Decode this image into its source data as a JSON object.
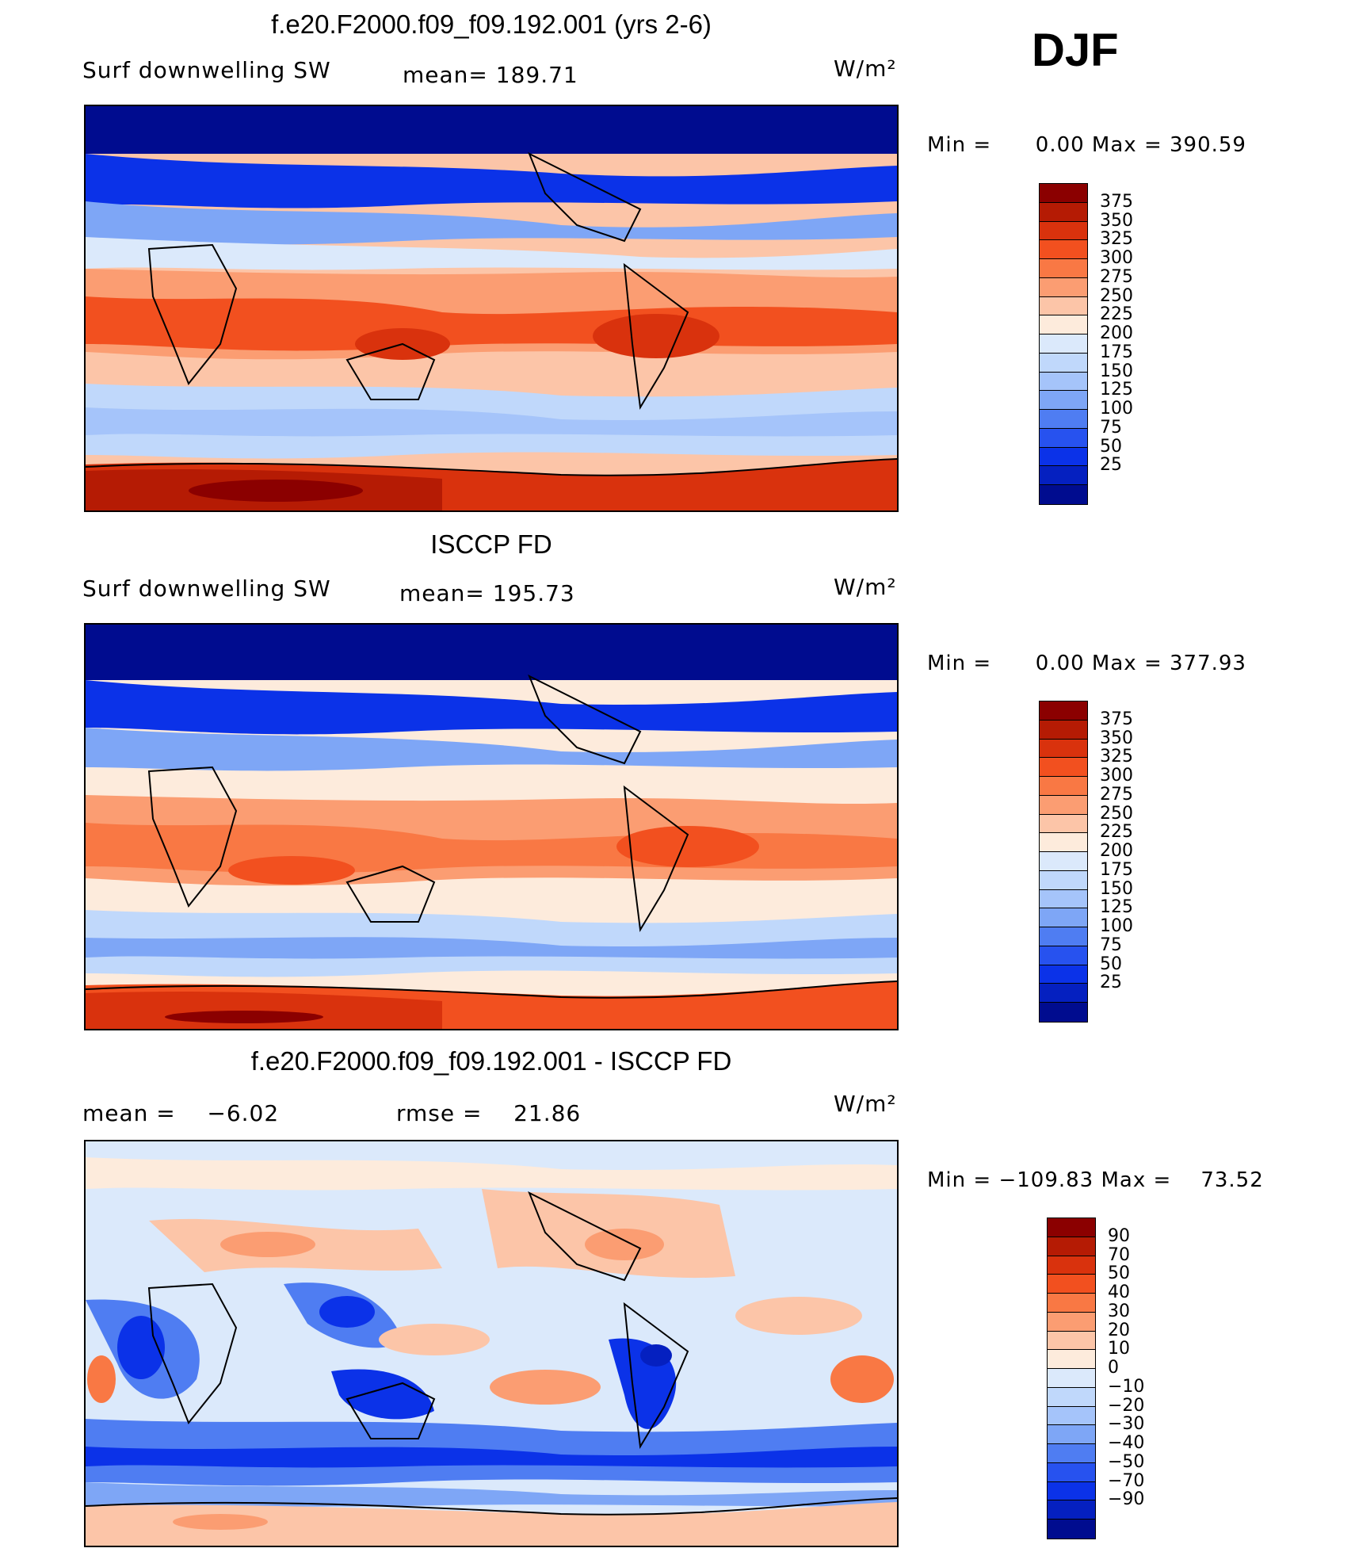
{
  "season": "DJF",
  "panels": [
    {
      "title": "f.e20.F2000.f09_f09.192.001 (yrs 2-6)",
      "left_text": "Surf downwelling SW",
      "center_text": "mean= 189.71",
      "units": "W/m²",
      "stats": "Min =      0.00 Max = 390.59",
      "colorbar": {
        "colors": [
          "#8b0000",
          "#b51b04",
          "#d9320d",
          "#f2501f",
          "#f97844",
          "#fb9d72",
          "#fcc5a8",
          "#fdebdc",
          "#dbe9fb",
          "#c0d8fb",
          "#a5c4fa",
          "#7ea6f6",
          "#4f7df2",
          "#2752ef",
          "#0b32e8",
          "#0520c0",
          "#000c8f"
        ],
        "labels": [
          "375",
          "350",
          "325",
          "300",
          "275",
          "250",
          "225",
          "200",
          "175",
          "150",
          "125",
          "100",
          "75",
          "50",
          "25"
        ]
      }
    },
    {
      "title": "ISCCP FD",
      "left_text": "Surf downwelling SW",
      "center_text": "mean= 195.73",
      "units": "W/m²",
      "stats": "Min =      0.00 Max = 377.93",
      "colorbar": {
        "colors": [
          "#8b0000",
          "#b51b04",
          "#d9320d",
          "#f2501f",
          "#f97844",
          "#fb9d72",
          "#fcc5a8",
          "#fdebdc",
          "#dbe9fb",
          "#c0d8fb",
          "#a5c4fa",
          "#7ea6f6",
          "#4f7df2",
          "#2752ef",
          "#0b32e8",
          "#0520c0",
          "#000c8f"
        ],
        "labels": [
          "375",
          "350",
          "325",
          "300",
          "275",
          "250",
          "225",
          "200",
          "175",
          "150",
          "125",
          "100",
          "75",
          "50",
          "25"
        ]
      }
    },
    {
      "title": "f.e20.F2000.f09_f09.192.001 - ISCCP FD",
      "left_text": "mean =    −6.02",
      "center_text": "rmse =    21.86",
      "units": "W/m²",
      "stats": "Min = −109.83 Max =    73.52",
      "colorbar": {
        "colors": [
          "#8b0000",
          "#b51b04",
          "#d9320d",
          "#f2501f",
          "#f97844",
          "#fb9d72",
          "#fcc5a8",
          "#fdebdc",
          "#dbe9fb",
          "#c0d8fb",
          "#a5c4fa",
          "#7ea6f6",
          "#4f7df2",
          "#2752ef",
          "#0b32e8",
          "#0520c0",
          "#000c8f"
        ],
        "labels": [
          "90",
          "70",
          "50",
          "40",
          "30",
          "20",
          "10",
          "0",
          "−10",
          "−20",
          "−30",
          "−40",
          "−50",
          "−70",
          "−90"
        ]
      }
    }
  ]
}
